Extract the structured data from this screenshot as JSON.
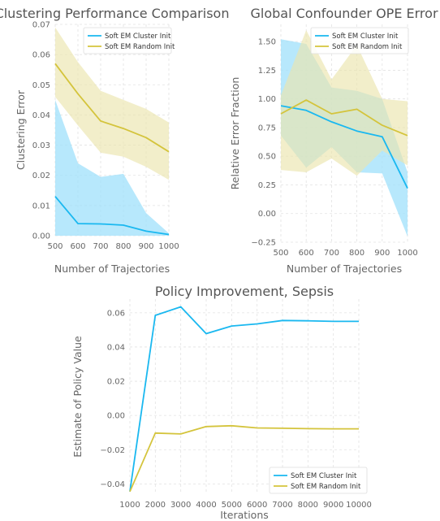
{
  "colors": {
    "cluster": "#1ab8f0",
    "random": "#d4c43c",
    "cluster_fill": "#9fe0fb",
    "random_fill": "#ebe5ae"
  },
  "chart_data": [
    {
      "type": "line",
      "title": "Clustering Performance Comparison",
      "xlabel": "Number of Trajectories",
      "ylabel": "Clustering Error",
      "x": [
        500,
        600,
        700,
        800,
        900,
        1000
      ],
      "xlim": [
        500,
        1000
      ],
      "ylim": [
        0,
        0.07
      ],
      "xticks": [
        "500",
        "600",
        "700",
        "800",
        "900",
        "1000"
      ],
      "yticks": [
        "0.00",
        "0.01",
        "0.02",
        "0.03",
        "0.04",
        "0.05",
        "0.06",
        "0.07"
      ],
      "ytick_values": [
        0,
        0.01,
        0.02,
        0.03,
        0.04,
        0.05,
        0.06,
        0.07
      ],
      "grid": true,
      "legend": "top-right",
      "series": [
        {
          "name": "Soft EM Cluster Init",
          "values": [
            0.013,
            0.004,
            0.0039,
            0.0035,
            0.0015,
            0.0004
          ],
          "lower": [
            0.0,
            0.0,
            0.0,
            0.0,
            0.0,
            0.0
          ],
          "upper": [
            0.045,
            0.024,
            0.0195,
            0.0205,
            0.0075,
            0.0008
          ]
        },
        {
          "name": "Soft EM Random Init",
          "values": [
            0.057,
            0.047,
            0.038,
            0.0355,
            0.0325,
            0.0278
          ],
          "lower": [
            0.046,
            0.0365,
            0.0275,
            0.0262,
            0.0228,
            0.0185
          ],
          "upper": [
            0.069,
            0.0575,
            0.048,
            0.045,
            0.042,
            0.0375
          ]
        }
      ]
    },
    {
      "type": "line",
      "title": "Global Confounder OPE Error",
      "xlabel": "Number of Trajectories",
      "ylabel": "Relative Error Fraction",
      "x": [
        500,
        600,
        700,
        800,
        900,
        1000
      ],
      "xlim": [
        500,
        1000
      ],
      "ylim": [
        -0.25,
        1.65
      ],
      "xticks": [
        "500",
        "600",
        "700",
        "800",
        "900",
        "1000"
      ],
      "yticks": [
        "−0.25",
        "0.00",
        "0.25",
        "0.50",
        "0.75",
        "1.00",
        "1.25",
        "1.50"
      ],
      "ytick_values": [
        -0.25,
        0,
        0.25,
        0.5,
        0.75,
        1.0,
        1.25,
        1.5
      ],
      "grid": true,
      "legend": "top-right",
      "series": [
        {
          "name": "Soft EM Cluster Init",
          "values": [
            0.94,
            0.9,
            0.8,
            0.72,
            0.67,
            0.22
          ],
          "lower": [
            0.68,
            0.4,
            0.58,
            0.36,
            0.35,
            -0.2
          ],
          "upper": [
            1.52,
            1.48,
            1.1,
            1.07,
            1.0,
            0.36
          ]
        },
        {
          "name": "Soft EM Random Init",
          "values": [
            0.87,
            0.99,
            0.87,
            0.91,
            0.77,
            0.68
          ],
          "lower": [
            0.38,
            0.36,
            0.48,
            0.33,
            0.55,
            0.42
          ],
          "upper": [
            1.03,
            1.6,
            1.17,
            1.47,
            1.0,
            0.98
          ]
        }
      ]
    },
    {
      "type": "line",
      "title": "Policy Improvement, Sepsis",
      "xlabel": "Iterations",
      "ylabel": "Estimate of Policy Value",
      "x": [
        1000,
        2000,
        3000,
        4000,
        5000,
        6000,
        7000,
        8000,
        9000,
        10000
      ],
      "xlim": [
        1000,
        10000
      ],
      "ylim": [
        -0.046,
        0.068
      ],
      "xticks": [
        "1000",
        "2000",
        "3000",
        "4000",
        "5000",
        "6000",
        "7000",
        "8000",
        "9000",
        "10000"
      ],
      "yticks": [
        "−0.04",
        "−0.02",
        "0.00",
        "0.02",
        "0.04",
        "0.06"
      ],
      "ytick_values": [
        -0.04,
        -0.02,
        0,
        0.02,
        0.04,
        0.06
      ],
      "grid": true,
      "legend": "bottom-right",
      "series": [
        {
          "name": "Soft EM Cluster Init",
          "values": [
            -0.0445,
            0.0585,
            0.0635,
            0.0478,
            0.0523,
            0.0535,
            0.0555,
            0.0553,
            0.055,
            0.055
          ]
        },
        {
          "name": "Soft EM Random Init",
          "values": [
            -0.0445,
            -0.0103,
            -0.0108,
            -0.0065,
            -0.006,
            -0.0073,
            -0.0075,
            -0.0077,
            -0.0078,
            -0.0078
          ]
        }
      ]
    }
  ]
}
